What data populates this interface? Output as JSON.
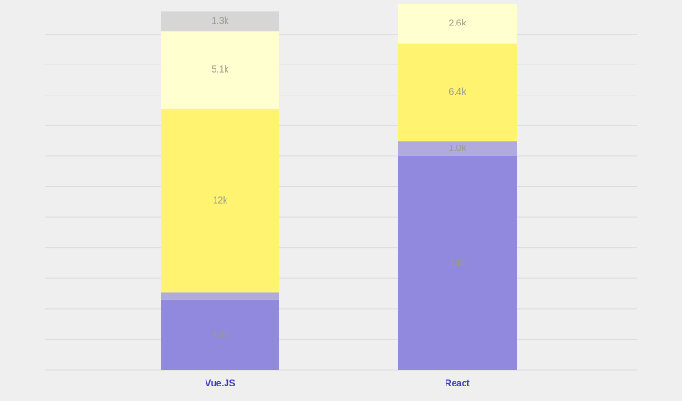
{
  "chart_data": {
    "type": "stacked_bar",
    "categories": [
      "Vue.JS",
      "React"
    ],
    "series": [
      {
        "color": "#9189de",
        "values": [
          4600,
          14000
        ],
        "value_labels": [
          "4.6k",
          "14k"
        ]
      },
      {
        "color": "#b0abdc",
        "values": [
          500,
          1000
        ],
        "value_labels": [
          null,
          "1.0k"
        ]
      },
      {
        "color": "#fff36f",
        "values": [
          12000,
          6400
        ],
        "value_labels": [
          "12k",
          "6.4k"
        ]
      },
      {
        "color": "#ffffcf",
        "values": [
          5100,
          2600
        ],
        "value_labels": [
          "5.1k",
          "2.6k"
        ]
      },
      {
        "color": "#d6d6d6",
        "values": [
          1300,
          null
        ],
        "value_labels": [
          "1.3k",
          null
        ]
      }
    ],
    "ylim": [
      0,
      24000
    ],
    "yticks": [
      0,
      2000,
      4000,
      6000,
      8000,
      10000,
      12000,
      14000,
      16000,
      18000,
      20000,
      22000
    ],
    "grid": true
  }
}
